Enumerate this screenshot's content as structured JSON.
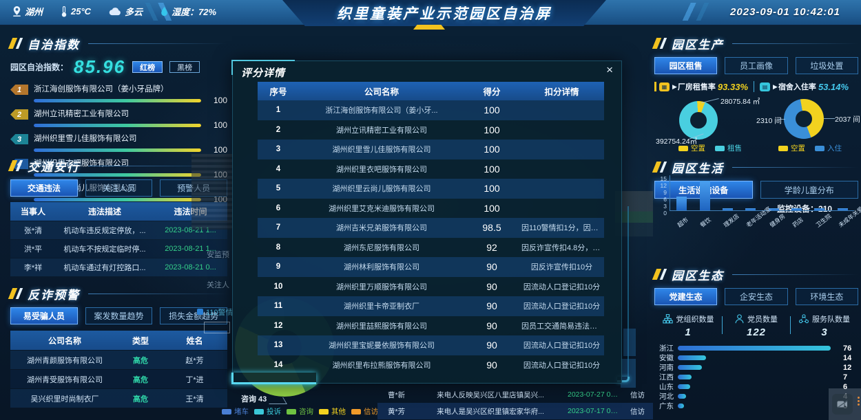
{
  "header": {
    "location": "湖州",
    "temperature": "25°C",
    "weather": "多云",
    "humidity": "湿度：72%",
    "title": "织里童装产业示范园区自治屏",
    "datetime": "2023-09-01 10:42:01"
  },
  "autonomy": {
    "title": "自治指数",
    "index_label": "园区自治指数：",
    "index_value": "85.96",
    "red_btn": "红榜",
    "black_btn": "黑榜",
    "items": [
      {
        "rank": "1",
        "name": "浙江海创服饰有限公司（姜小牙品牌）",
        "score": "100"
      },
      {
        "rank": "2",
        "name": "湖州立讯精密工业有限公司",
        "score": "100"
      },
      {
        "rank": "3",
        "name": "湖州织里雪儿佳服饰有限公司",
        "score": "100"
      },
      {
        "rank": "4",
        "name": "湖州织里衣吧服饰有限公司",
        "score": "100"
      },
      {
        "rank": "5",
        "name": "湖州织里云尚儿服饰有限公司",
        "score": "100"
      }
    ]
  },
  "traffic": {
    "title": "交通安行",
    "tabs": [
      "交通违法",
      "关注人员",
      "预警人员"
    ],
    "columns": [
      "当事人",
      "违法描述",
      "违法时间"
    ],
    "rows": [
      [
        "张*清",
        "机动车违反规定停放，...",
        "2023-08-21 1..."
      ],
      [
        "洪*平",
        "机动车不按规定临时停...",
        "2023-08-21 1..."
      ],
      [
        "李*祥",
        "机动车通过有灯控路口...",
        "2023-08-21 0..."
      ]
    ]
  },
  "fraud": {
    "title": "反诈预警",
    "tabs": [
      "易受骗人员",
      "案发数量趋势",
      "损失金额趋势"
    ],
    "columns": [
      "公司名称",
      "类型",
      "姓名"
    ],
    "rows": [
      [
        "湖州青颜服饰有限公司",
        "高危",
        "赵*芳"
      ],
      [
        "湖州青受服饰有限公司",
        "高危",
        "丁*进"
      ],
      [
        "吴兴织里时尚制衣厂",
        "高危",
        "王*清"
      ]
    ]
  },
  "modal": {
    "title": "评分详情",
    "close": "×",
    "columns": [
      "序号",
      "公司名称",
      "得分",
      "扣分详情"
    ],
    "rows": [
      {
        "no": "1",
        "company": "浙江海创服饰有限公司（姜小牙...",
        "score": "100",
        "deduction": ""
      },
      {
        "no": "2",
        "company": "湖州立讯精密工业有限公司",
        "score": "100",
        "deduction": ""
      },
      {
        "no": "3",
        "company": "湖州织里雪儿佳服饰有限公司",
        "score": "100",
        "deduction": ""
      },
      {
        "no": "4",
        "company": "湖州织里衣吧服饰有限公司",
        "score": "100",
        "deduction": ""
      },
      {
        "no": "5",
        "company": "湖州织里云尚儿服饰有限公司",
        "score": "100",
        "deduction": ""
      },
      {
        "no": "6",
        "company": "湖州织里艾克米迪服饰有限公司",
        "score": "100",
        "deduction": ""
      },
      {
        "no": "7",
        "company": "湖州吉米兄弟服饰有限公司",
        "score": "98.5",
        "deduction": "因110警情扣1分，因员工交通简..."
      },
      {
        "no": "8",
        "company": "湖州东尼服饰有限公司",
        "score": "92",
        "deduction": "因反诈宣传扣4.8分，因流动人口..."
      },
      {
        "no": "9",
        "company": "湖州林利服饰有限公司",
        "score": "90",
        "deduction": "因反诈宣传扣10分"
      },
      {
        "no": "10",
        "company": "湖州织里万顺服饰有限公司",
        "score": "90",
        "deduction": "因流动人口登记扣10分"
      },
      {
        "no": "11",
        "company": "湖州织里卡帝亚制衣厂",
        "score": "90",
        "deduction": "因流动人口登记扣10分"
      },
      {
        "no": "12",
        "company": "湖州织里喆熙服饰有限公司",
        "score": "90",
        "deduction": "因员工交通简易违法守法率扣10分"
      },
      {
        "no": "13",
        "company": "湖州织里宝妮曼依服饰有限公司",
        "score": "90",
        "deduction": "因流动人口登记扣10分"
      },
      {
        "no": "14",
        "company": "湖州织里布拉熊服饰有限公司",
        "score": "90",
        "deduction": "因流动人口登记扣10分"
      }
    ]
  },
  "production": {
    "title": "园区生产",
    "tabs": [
      "园区租售",
      "员工画像",
      "垃圾处置"
    ],
    "factory_rate_label": "厂房租售率",
    "factory_rate": "93.33%",
    "dorm_rate_label": "宿舍入住率",
    "dorm_rate": "53.14%"
  },
  "life": {
    "title": "园区生活",
    "tabs": [
      "生活设施设备",
      "学龄儿童分布"
    ],
    "monitor_label": "监控设备：",
    "monitor_value": "210"
  },
  "ecology": {
    "title": "园区生态",
    "tabs": [
      "党建生态",
      "企安生态",
      "环境生态"
    ],
    "stats": [
      {
        "label": "党组织数量",
        "value": "1"
      },
      {
        "label": "党员数量",
        "value": "122"
      },
      {
        "label": "服务队数量",
        "value": "3"
      }
    ]
  },
  "background": {
    "hotline_rows": [
      [
        "曹*新",
        "来电人反映吴兴区八里店镇吴兴...",
        "2023-07-27 07...",
        "信访"
      ],
      [
        "黄*芳",
        "来电人是吴兴区织里镇宏家华府...",
        "2023-07-17 09...",
        "信访"
      ]
    ],
    "consult_label": "咨询 43",
    "fragments": {
      "anjian": "安监预",
      "guanzhu": "关注人",
      "alert110": "110警情"
    }
  },
  "chart_data": [
    {
      "id": "factory_donut",
      "type": "pie",
      "title": "厂房租售率 93.33%",
      "series": [
        {
          "name": "空置",
          "value": 28075.84,
          "label": "28075.84 ㎡",
          "color": "#f2d21f"
        },
        {
          "name": "租售",
          "value": 392754.24,
          "label": "392754.24㎡",
          "color": "#49cfe0"
        }
      ]
    },
    {
      "id": "dorm_donut",
      "type": "pie",
      "title": "宿舍入住率 53.14%",
      "series": [
        {
          "name": "空置",
          "value": 2037,
          "label": "2037 间",
          "color": "#f2d21f"
        },
        {
          "name": "入住",
          "value": 2310,
          "label": "2310 间",
          "color": "#3a8fd8"
        }
      ]
    },
    {
      "id": "facilities_bar",
      "type": "bar",
      "categories": [
        "超市",
        "餐饮",
        "理发店",
        "老年活动室",
        "健身房",
        "药店",
        "卫生院",
        "未成年关爱中心"
      ],
      "values": [
        6,
        13,
        1,
        1,
        1,
        1,
        1,
        1
      ],
      "ylim": [
        0,
        15
      ],
      "yticks": [
        0,
        3,
        6,
        9,
        12,
        15
      ],
      "color": "#2e7fd4"
    },
    {
      "id": "province_bar",
      "type": "bar",
      "orientation": "horizontal",
      "categories": [
        "浙江",
        "安徽",
        "河南",
        "江西",
        "山东",
        "河北",
        "广东"
      ],
      "values": [
        76,
        14,
        12,
        7,
        6,
        4,
        3
      ],
      "xlim": [
        0,
        80
      ]
    },
    {
      "id": "hotline_donut",
      "type": "pie",
      "label": "咨询 43",
      "legend": [
        "堵车",
        "投诉",
        "咨询",
        "其他",
        "信访"
      ],
      "legend_colors": [
        "#4a7fd4",
        "#3bc8d8",
        "#6fc242",
        "#f2d21f",
        "#f09b2a"
      ]
    }
  ]
}
